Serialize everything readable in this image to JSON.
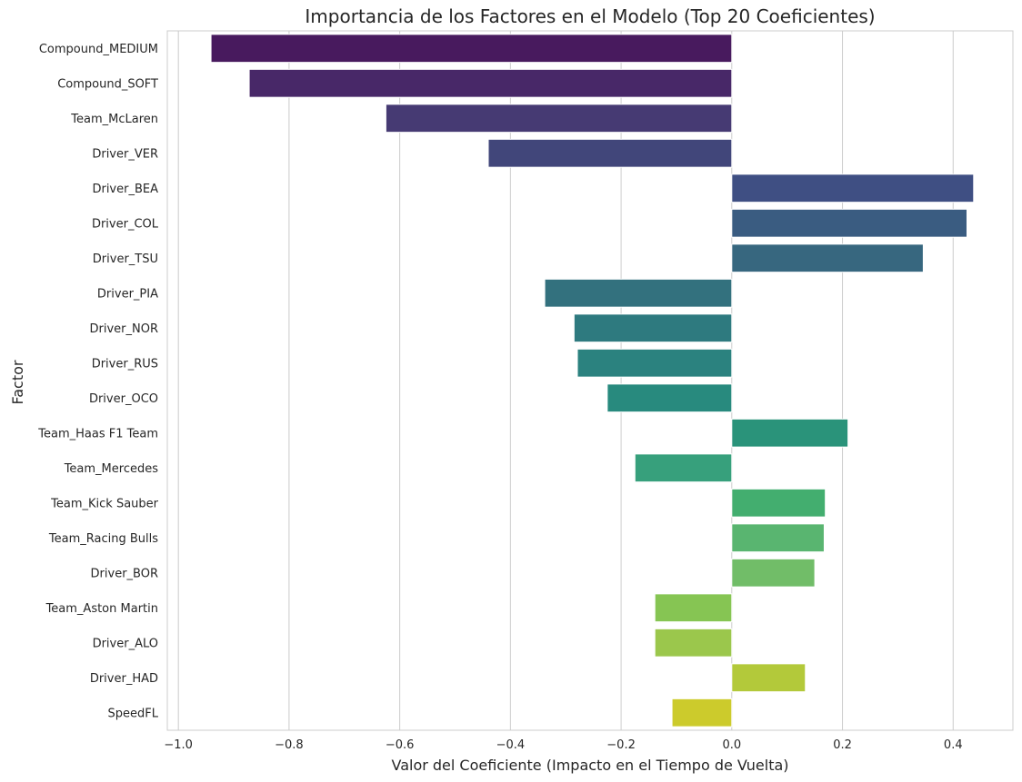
{
  "chart_data": {
    "type": "bar",
    "orientation": "horizontal",
    "title": "Importancia de los Factores en el Modelo (Top 20 Coeficientes)",
    "xlabel": "Valor del Coeficiente (Impacto en el Tiempo de Vuelta)",
    "ylabel": "Factor",
    "xlim": [
      -1.02,
      0.508
    ],
    "xticks": [
      -1.0,
      -0.8,
      -0.6,
      -0.4,
      -0.2,
      0.0,
      0.2,
      0.4
    ],
    "xtick_labels": [
      "−1.0",
      "−0.8",
      "−0.6",
      "−0.4",
      "−0.2",
      "0.0",
      "0.2",
      "0.4"
    ],
    "grid": true,
    "categories": [
      "Compound_MEDIUM",
      "Compound_SOFT",
      "Team_McLaren",
      "Driver_VER",
      "Driver_BEA",
      "Driver_COL",
      "Driver_TSU",
      "Driver_PIA",
      "Driver_NOR",
      "Driver_RUS",
      "Driver_OCO",
      "Team_Haas F1 Team",
      "Team_Mercedes",
      "Team_Kick Sauber",
      "Team_Racing Bulls",
      "Driver_BOR",
      "Team_Aston Martin",
      "Driver_ALO",
      "Driver_HAD",
      "SpeedFL"
    ],
    "values": [
      -0.941,
      -0.872,
      -0.625,
      -0.44,
      0.437,
      0.425,
      0.346,
      -0.338,
      -0.285,
      -0.279,
      -0.225,
      0.21,
      -0.175,
      0.169,
      0.167,
      0.15,
      -0.139,
      -0.139,
      0.133,
      -0.108
    ],
    "colors": [
      "#481A5E",
      "#482868",
      "#463A73",
      "#41467A",
      "#3F4F83",
      "#3A5C81",
      "#37677F",
      "#33717E",
      "#2E7A7F",
      "#2B827F",
      "#288A7E",
      "#2A937A",
      "#37A07C",
      "#43AE6F",
      "#59B570",
      "#71BD68",
      "#86C553",
      "#9BC74C",
      "#B3C93A",
      "#CCCB2C"
    ]
  }
}
